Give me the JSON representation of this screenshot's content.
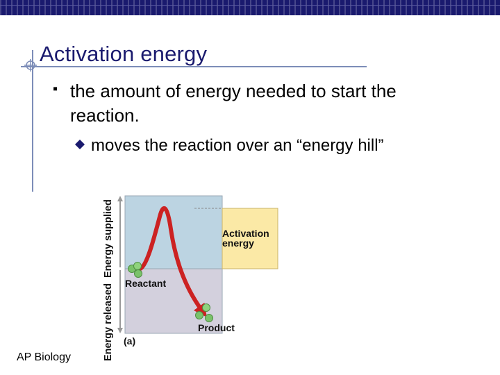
{
  "slide": {
    "title": "Activation energy",
    "bullets": [
      {
        "text": "the amount of energy needed to start the reaction."
      }
    ],
    "sub_bullets": [
      {
        "text": "moves the reaction over an “energy hill”"
      }
    ],
    "footer": "AP Biology"
  },
  "diagram": {
    "axis_label_top": "Energy supplied",
    "axis_label_bottom": "Energy released",
    "activation_label_line1": "Activation",
    "activation_label_line2": "energy",
    "reactant_label": "Reactant",
    "product_label": "Product",
    "panel_label": "(a)"
  },
  "colors": {
    "header_bar": "#1a1a6e",
    "title": "#1a1a6e",
    "guide_lines": "#7d8db8",
    "supplied_region": "#bcd4e2",
    "released_region": "#d3d0dd",
    "activation_box": "#fbe9a6",
    "curve": "#cc2222",
    "molecule": "#7ac26a"
  }
}
